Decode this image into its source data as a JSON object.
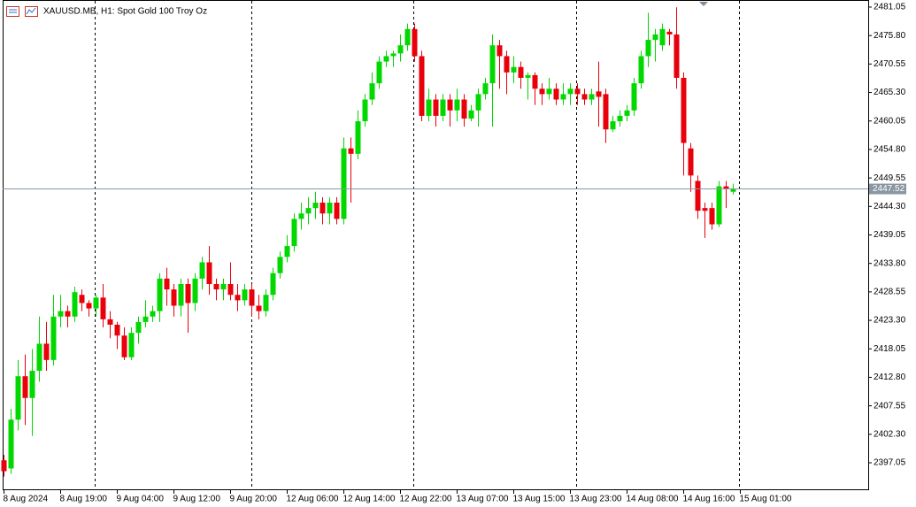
{
  "chart_data": {
    "type": "candlestick",
    "title": "XAUUSD.MB, H1:  Spot Gold 100 Troy Oz",
    "categories": [
      "8 Aug 2024",
      null,
      null,
      null,
      null,
      null,
      null,
      null,
      "8 Aug 19:00",
      null,
      null,
      null,
      null,
      null,
      null,
      null,
      "9 Aug 04:00",
      null,
      null,
      null,
      null,
      null,
      null,
      null,
      "9 Aug 12:00",
      null,
      null,
      null,
      null,
      null,
      null,
      null,
      "9 Aug 20:00",
      null,
      null,
      null,
      null,
      null,
      null,
      null,
      "12 Aug 06:00",
      null,
      null,
      null,
      null,
      null,
      null,
      null,
      "12 Aug 14:00",
      null,
      null,
      null,
      null,
      null,
      null,
      null,
      "12 Aug 22:00",
      null,
      null,
      null,
      null,
      null,
      null,
      null,
      "13 Aug 07:00",
      null,
      null,
      null,
      null,
      null,
      null,
      null,
      "13 Aug 15:00",
      null,
      null,
      null,
      null,
      null,
      null,
      null,
      "13 Aug 23:00",
      null,
      null,
      null,
      null,
      null,
      null,
      null,
      "14 Aug 08:00",
      null,
      null,
      null,
      null,
      null,
      null,
      null,
      "14 Aug 16:00",
      null,
      null,
      null,
      null,
      null,
      null,
      null,
      "15 Aug 01:00"
    ],
    "open": [
      2397.5,
      2396,
      2405,
      2413,
      2409,
      2414,
      2419,
      2416,
      2424,
      2425,
      2424,
      2428,
      2426.5,
      2425.5,
      2427.5,
      2423.5,
      2422.5,
      2420.5,
      2416.5,
      2421,
      2423,
      2424,
      2425,
      2431,
      2429,
      2426,
      2430,
      2426.5,
      2431,
      2434,
      2430,
      2429,
      2430,
      2428,
      2427,
      2429,
      2426,
      2425,
      2428,
      2432,
      2435,
      2437,
      2442,
      2443,
      2444,
      2445,
      2443,
      2445,
      2442,
      2455,
      2454,
      2460,
      2464,
      2467,
      2471,
      2472,
      2472.5,
      2474,
      2477,
      2472,
      2461,
      2464,
      2461,
      2464,
      2462,
      2464,
      2460.5,
      2462,
      2465,
      2467,
      2474,
      2472,
      2469,
      2470,
      2468,
      2468.5,
      2466,
      2465,
      2466,
      2464,
      2465,
      2466,
      2465,
      2464,
      2465.5,
      2465,
      2458.5,
      2460,
      2461,
      2462,
      2467,
      2472,
      2475,
      2474,
      2476.5,
      2476,
      2468,
      2455,
      2449,
      2444,
      2444,
      2441,
      2448,
      2447,
      null
    ],
    "high": [
      2398.5,
      2407,
      2416,
      2417,
      2418,
      2424,
      2423,
      2428,
      2428,
      2426,
      2429.5,
      2429,
      2427,
      2428,
      2430,
      2425,
      2423,
      2422,
      2422,
      2424,
      2427,
      2426,
      2432,
      2433,
      2430,
      2431,
      2431,
      2432,
      2435,
      2437,
      2431,
      2431,
      2434,
      2430,
      2430,
      2430,
      2428,
      2429,
      2433,
      2436,
      2439,
      2443,
      2445,
      2446,
      2447,
      2446,
      2446,
      2446,
      2457,
      2457,
      2462,
      2465,
      2469,
      2472,
      2473,
      2473,
      2476,
      2478,
      2478,
      2473,
      2466,
      2465,
      2465,
      2465,
      2466,
      2465,
      2463,
      2466,
      2468,
      2476,
      2475,
      2473,
      2472,
      2471,
      2469,
      2469,
      2467,
      2468,
      2467,
      2467,
      2467,
      2467,
      2466,
      2466,
      2471,
      2466,
      2461,
      2462,
      2463,
      2468,
      2473,
      2480,
      2477,
      2478,
      2477,
      2481,
      2469,
      2456,
      2450,
      2445,
      2445,
      2449,
      2449,
      2448.5,
      null
    ],
    "low": [
      2394.5,
      2395,
      2403,
      2404,
      2402,
      2412,
      2414,
      2415,
      2422,
      2422,
      2423,
      2425,
      2424,
      2424,
      2422,
      2420,
      2418,
      2416,
      2416,
      2419,
      2422,
      2423,
      2423,
      2426,
      2424,
      2424,
      2421,
      2425,
      2429,
      2428,
      2427,
      2427,
      2427,
      2425,
      2426,
      2424,
      2423.5,
      2424,
      2427,
      2431,
      2434,
      2436,
      2440,
      2441,
      2442,
      2441,
      2441,
      2441,
      2441,
      2445,
      2453,
      2459,
      2463,
      2466,
      2470,
      2470,
      2471,
      2473,
      2471,
      2460,
      2460,
      2459,
      2460,
      2459,
      2460,
      2459,
      2460,
      2459,
      2464,
      2459,
      2466,
      2465,
      2467,
      2466,
      2464,
      2463,
      2463,
      2464,
      2463,
      2463,
      2463,
      2463,
      2463,
      2463,
      2459,
      2456,
      2458,
      2459,
      2460,
      2461,
      2466,
      2470,
      2471,
      2473,
      2474,
      2466,
      2450,
      2447,
      2442,
      2438.5,
      2440,
      2440.5,
      2444,
      2446.5,
      null
    ],
    "close": [
      2395.5,
      2405,
      2413,
      2409,
      2414,
      2419,
      2416,
      2424,
      2425,
      2424,
      2428.5,
      2426.5,
      2425.5,
      2427.5,
      2423.5,
      2422.5,
      2420.5,
      2416.5,
      2421,
      2423,
      2424,
      2425,
      2431,
      2429,
      2426,
      2430,
      2426.5,
      2431,
      2434,
      2430,
      2429,
      2430,
      2428,
      2427,
      2429,
      2426,
      2425,
      2428,
      2432,
      2435,
      2437,
      2442,
      2443,
      2444,
      2445,
      2443,
      2445,
      2442,
      2455,
      2454,
      2460,
      2464,
      2467,
      2471,
      2472,
      2472.5,
      2474,
      2477,
      2472,
      2461,
      2464,
      2461,
      2464,
      2462,
      2464,
      2460.5,
      2462,
      2465,
      2467,
      2474,
      2472,
      2469,
      2470,
      2468,
      2468.5,
      2466,
      2465,
      2466,
      2464,
      2465,
      2466,
      2465,
      2464,
      2465,
      2464.5,
      2458.5,
      2460,
      2461,
      2462,
      2467,
      2472,
      2475,
      2476,
      2477,
      2476,
      2468,
      2456,
      2450,
      2443.5,
      2443.5,
      2441,
      2448,
      2447.5,
      2447.52,
      null
    ],
    "up_color": "#00d800",
    "down_color": "#e8000b",
    "last_price": 2447.52,
    "last_price_color": "#8a97a3",
    "ylim": [
      2392.16,
      2482.35
    ],
    "yticks": [
      2481.05,
      {
        "value": 2475.8,
        "label": "2475.80"
      },
      2470.55,
      {
        "value": 2465.3,
        "label": "2465.30"
      },
      2460.05,
      {
        "value": 2454.8,
        "label": "2454.80"
      },
      2449.55,
      {
        "value": 2444.3,
        "label": "2444.30"
      },
      2439.05,
      {
        "value": 2433.8,
        "label": "2433.80"
      },
      2428.55,
      {
        "value": 2423.3,
        "label": "2423.30"
      },
      2418.05,
      {
        "value": 2412.8,
        "label": "2412.80"
      },
      2407.55,
      {
        "value": 2402.3,
        "label": "2402.30"
      },
      2397.05
    ]
  }
}
